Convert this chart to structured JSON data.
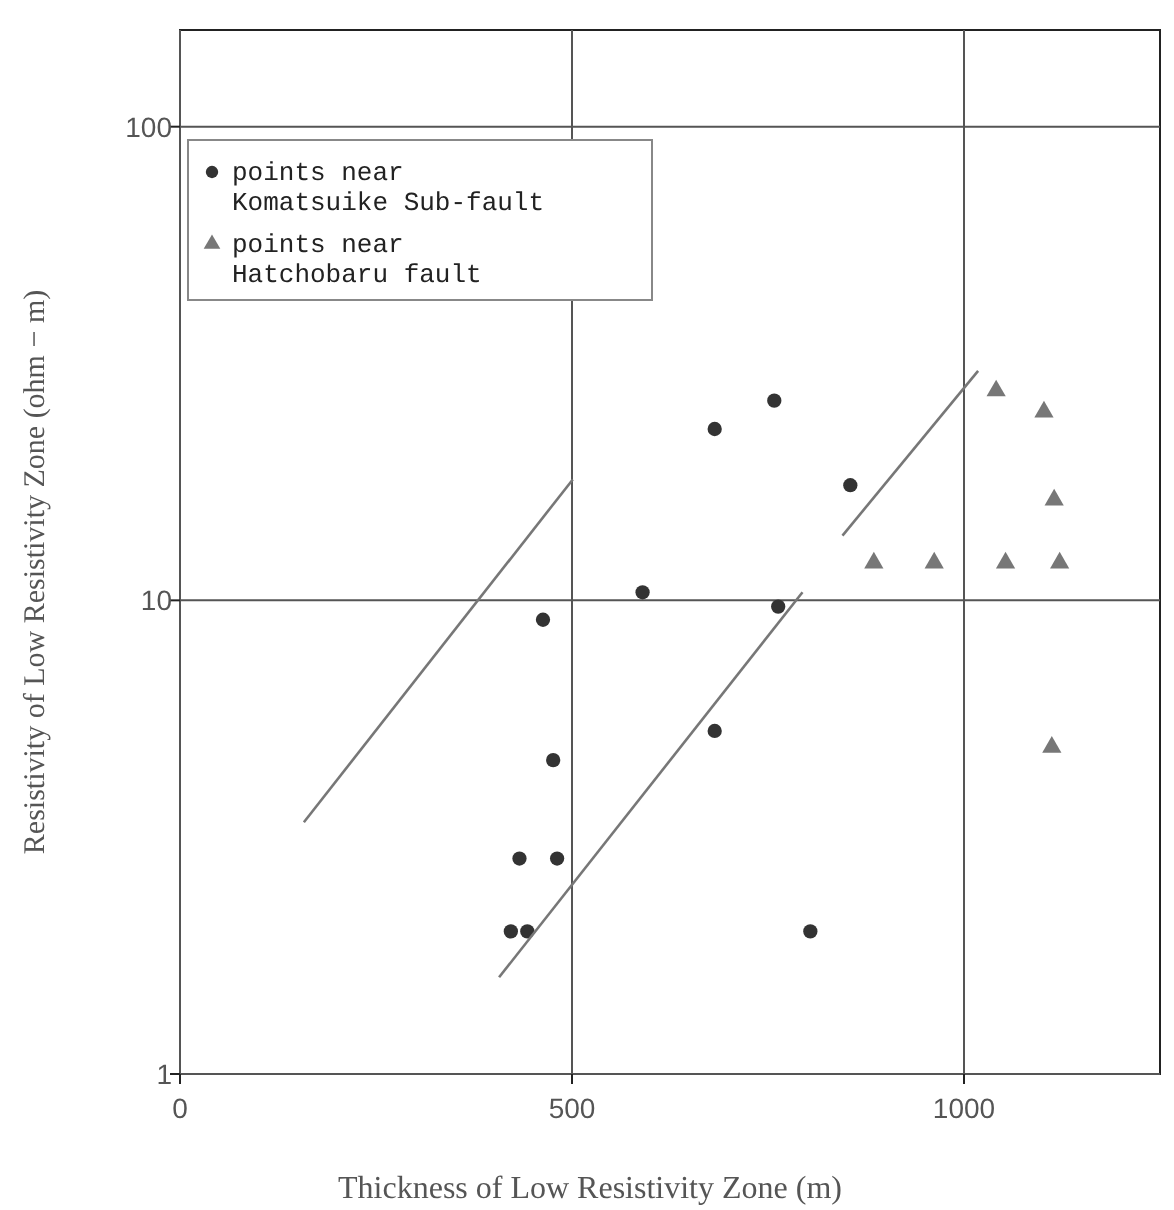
{
  "chart_data": {
    "type": "scatter",
    "xlabel": "Thickness of Low Resistivity Zone (m)",
    "ylabel": "Resistivity of Low Resistivity Zone (ohm − m)",
    "xlim": [
      0,
      1250
    ],
    "xticks": [
      0,
      500,
      1000
    ],
    "ylim": [
      1,
      160
    ],
    "yticks": [
      1,
      10,
      100
    ],
    "log": "y",
    "grid": true,
    "legend": "top left",
    "series": [
      {
        "name": "points near Komatsuike Sub-fault",
        "color": "#333333",
        "marker": "circle",
        "x": [
          855,
          463,
          433,
          481,
          422,
          443,
          804,
          682,
          590,
          763,
          682,
          758,
          476
        ],
        "values": [
          17.5,
          9.1,
          2.85,
          2.85,
          2.0,
          2.0,
          2.0,
          5.3,
          10.4,
          9.7,
          23,
          26.4,
          4.6
        ]
      },
      {
        "name": "points near Hatchobaru fault",
        "color": "#777777",
        "marker": "triangle",
        "x": [
          1041,
          1102,
          1115,
          885,
          962,
          1053,
          1122,
          1112
        ],
        "values": [
          27.7,
          25,
          16.3,
          12,
          12,
          12,
          12,
          4.9
        ]
      },
      {
        "type": "line",
        "color": "#777777",
        "marker": "none",
        "x": [
          158,
          501
        ],
        "values": [
          3.4,
          18
        ]
      },
      {
        "type": "line",
        "color": "#777777",
        "marker": "none",
        "x": [
          407,
          794
        ],
        "values": [
          1.6,
          10.4
        ]
      },
      {
        "type": "line",
        "color": "#777777",
        "marker": "none",
        "x": [
          845,
          1018
        ],
        "values": [
          13.7,
          30.5
        ]
      }
    ]
  }
}
